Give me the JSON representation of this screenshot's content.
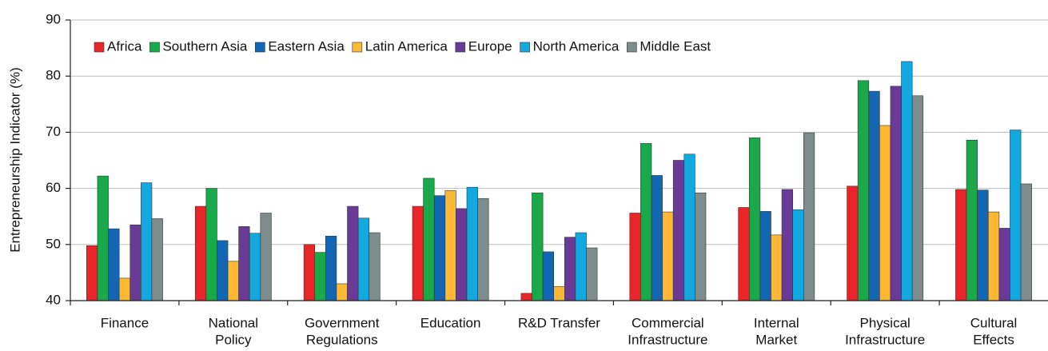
{
  "chart_data": {
    "type": "bar",
    "y_label": "Entrepreneurship Indicator (%)",
    "categories": [
      [
        "Finance"
      ],
      [
        "National",
        "Policy"
      ],
      [
        "Government",
        "Regulations"
      ],
      [
        "Education"
      ],
      [
        "R&D Transfer"
      ],
      [
        "Commercial",
        "Infrastructure"
      ],
      [
        "Internal",
        "Market"
      ],
      [
        "Physical",
        "Infrastructure"
      ],
      [
        "Cultural",
        "Effects"
      ]
    ],
    "series": [
      {
        "name": "Africa",
        "color": "#e8262a",
        "values": [
          49.8,
          56.8,
          50,
          56.8,
          41.3,
          55.6,
          56.6,
          60.4,
          59.8
        ]
      },
      {
        "name": "Southern Asia",
        "color": "#19a84a",
        "values": [
          62.2,
          60,
          48.6,
          61.8,
          59.2,
          68,
          69,
          79.2,
          68.6
        ]
      },
      {
        "name": "Eastern Asia",
        "color": "#1366b4",
        "values": [
          52.8,
          50.7,
          51.5,
          58.7,
          48.7,
          62.3,
          55.9,
          77.3,
          59.7
        ]
      },
      {
        "name": "Latin America",
        "color": "#fdb933",
        "values": [
          44,
          47,
          43,
          59.6,
          42.5,
          55.8,
          51.7,
          71.2,
          55.8
        ]
      },
      {
        "name": "Europe",
        "color": "#6a3a96",
        "values": [
          53.5,
          53.2,
          56.8,
          56.4,
          51.3,
          65,
          59.8,
          78.2,
          52.9
        ]
      },
      {
        "name": "North America",
        "color": "#12a9e0",
        "values": [
          61,
          52,
          54.7,
          60.2,
          52.1,
          66.1,
          56.2,
          82.6,
          70.4
        ]
      },
      {
        "name": "Middle East",
        "color": "#7f8c8d",
        "values": [
          54.6,
          55.6,
          52.1,
          58.2,
          49.4,
          59.2,
          69.9,
          76.5,
          60.8
        ]
      }
    ],
    "ylim": [
      40,
      90
    ],
    "yticks": [
      40,
      50,
      60,
      70,
      80,
      90
    ],
    "grid": true,
    "legend": "top-left"
  }
}
